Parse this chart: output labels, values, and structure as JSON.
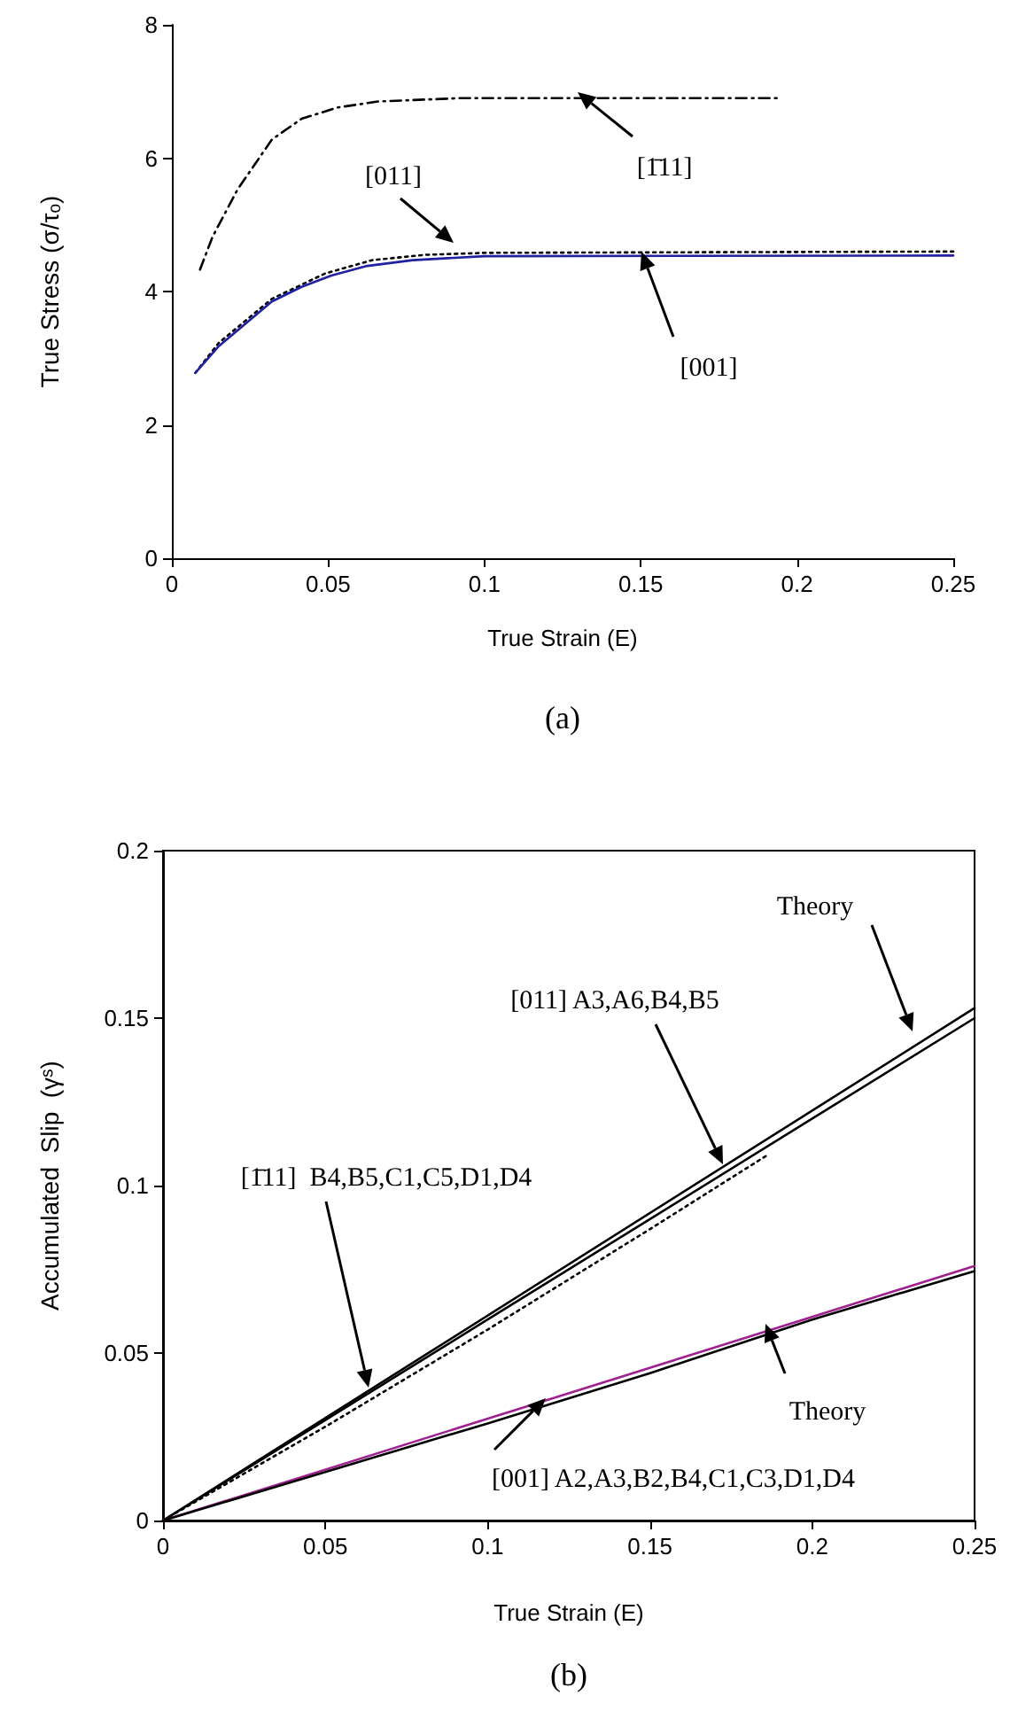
{
  "chart_data": [
    {
      "type": "line",
      "xlabel": "True Strain (E)",
      "ylabel": "True Stress (σ/τₒ)",
      "xlim": [
        0,
        0.25
      ],
      "xticks": [
        0,
        0.05,
        0.1,
        0.15,
        0.2,
        0.25
      ],
      "ylim": [
        0,
        8
      ],
      "yticks": [
        0,
        2,
        4,
        6,
        8
      ],
      "grid": false,
      "marker": "none",
      "series": [
        {
          "color": "#000000",
          "line_style": "dashed",
          "x": [
            0.009,
            0.013,
            0.021,
            0.032,
            0.0415,
            0.053,
            0.066,
            0.092,
            0.194
          ],
          "values": [
            4.33,
            4.82,
            5.53,
            6.28,
            6.59,
            6.76,
            6.85,
            6.9,
            6.9
          ]
        },
        {
          "color": "#000000",
          "line_style": "dotted",
          "x": [
            0.0075,
            0.015,
            0.032,
            0.049,
            0.064,
            0.081,
            0.1,
            0.25
          ],
          "values": [
            2.78,
            3.23,
            3.89,
            4.27,
            4.47,
            4.55,
            4.58,
            4.6
          ]
        },
        {
          "color": "#2020a0",
          "line_style": "solid",
          "x": [
            0.0075,
            0.015,
            0.032,
            0.0415,
            0.051,
            0.062,
            0.077,
            0.1,
            0.25
          ],
          "values": [
            2.78,
            3.18,
            3.85,
            4.07,
            4.24,
            4.38,
            4.47,
            4.53,
            4.54
          ]
        }
      ],
      "annotations": [
        "[1̄11]",
        "[011]",
        "[001]",
        "(a)"
      ]
    },
    {
      "type": "line",
      "xlabel": "True Strain (E)",
      "ylabel": "Accumulated  Slip  (γˢ)",
      "xlim": [
        0,
        0.25
      ],
      "xticks": [
        0,
        0.05,
        0.1,
        0.15,
        0.2,
        0.25
      ],
      "ylim": [
        0,
        0.2
      ],
      "yticks": [
        0,
        0.05,
        0.1,
        0.15,
        0.2
      ],
      "grid": false,
      "marker": "none",
      "series": [
        {
          "color": "#000000",
          "line_style": "solid",
          "x": [
            0,
            0.25
          ],
          "values": [
            0,
            0.153
          ]
        },
        {
          "color": "#000000",
          "line_style": "solid",
          "x": [
            0,
            0.05,
            0.1,
            0.15,
            0.2,
            0.25
          ],
          "values": [
            0,
            0.03,
            0.06,
            0.09,
            0.12,
            0.15
          ]
        },
        {
          "color": "#000000",
          "line_style": "dotted",
          "x": [
            0,
            0.05,
            0.1,
            0.15,
            0.186
          ],
          "values": [
            0,
            0.028,
            0.057,
            0.087,
            0.109
          ]
        },
        {
          "color": "#a0208f",
          "line_style": "solid",
          "x": [
            0,
            0.25
          ],
          "values": [
            0,
            0.076
          ]
        },
        {
          "color": "#000000",
          "line_style": "solid",
          "x": [
            0,
            0.05,
            0.1,
            0.15,
            0.2,
            0.25
          ],
          "values": [
            0,
            0.0145,
            0.029,
            0.044,
            0.06,
            0.0745
          ]
        }
      ],
      "annotations": [
        "Theory",
        "[011] A3,A6,B4,B5",
        "[1̄11]  B4,B5,C1,C5,D1,D4",
        "Theory",
        "[001] A2,A3,B2,B4,C1,C3,D1,D4",
        "(b)"
      ]
    }
  ]
}
